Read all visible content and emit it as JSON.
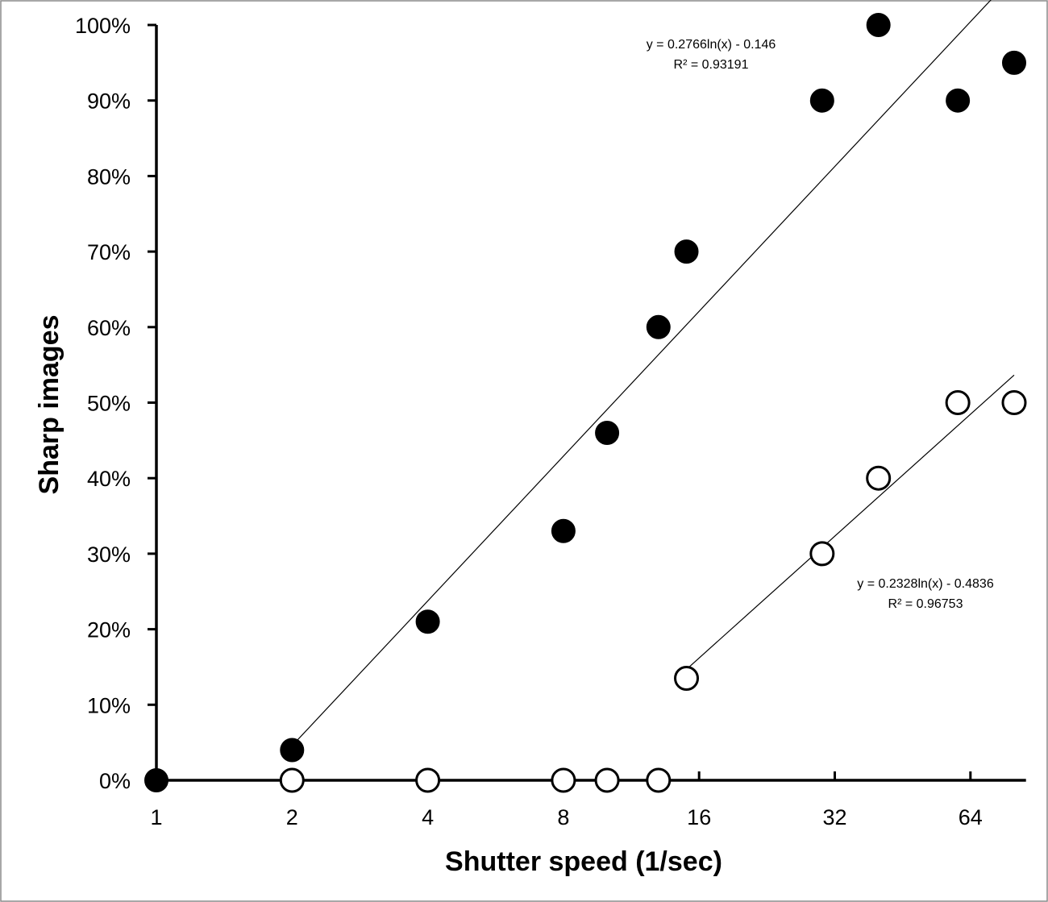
{
  "chart_data": {
    "type": "scatter",
    "title": "",
    "xlabel": "Shutter speed (1/sec)",
    "ylabel": "Sharp images",
    "x_scale": "log2",
    "xlim": [
      1,
      85
    ],
    "ylim": [
      0,
      1
    ],
    "x_ticks": [
      {
        "value": 1,
        "label": "1"
      },
      {
        "value": 2,
        "label": "2"
      },
      {
        "value": 4,
        "label": "4"
      },
      {
        "value": 8,
        "label": "8"
      },
      {
        "value": 16,
        "label": "16"
      },
      {
        "value": 32,
        "label": "32"
      },
      {
        "value": 64,
        "label": "64"
      }
    ],
    "y_ticks": [
      {
        "value": 0,
        "label": "0%"
      },
      {
        "value": 0.1,
        "label": "10%"
      },
      {
        "value": 0.2,
        "label": "20%"
      },
      {
        "value": 0.3,
        "label": "30%"
      },
      {
        "value": 0.4,
        "label": "40%"
      },
      {
        "value": 0.5,
        "label": "50%"
      },
      {
        "value": 0.6,
        "label": "60%"
      },
      {
        "value": 0.7,
        "label": "70%"
      },
      {
        "value": 0.8,
        "label": "80%"
      },
      {
        "value": 0.9,
        "label": "90%"
      },
      {
        "value": 1.0,
        "label": "100%"
      }
    ],
    "grid": false,
    "series": [
      {
        "name": "filled",
        "marker": "filled-circle",
        "points": [
          {
            "x": 1,
            "y": 0
          },
          {
            "x": 2,
            "y": 0.04
          },
          {
            "x": 4,
            "y": 0.21
          },
          {
            "x": 8,
            "y": 0.33
          },
          {
            "x": 10,
            "y": 0.46
          },
          {
            "x": 13,
            "y": 0.6
          },
          {
            "x": 15,
            "y": 0.7
          },
          {
            "x": 30,
            "y": 0.9
          },
          {
            "x": 40,
            "y": 1.0
          },
          {
            "x": 60,
            "y": 0.9
          },
          {
            "x": 80,
            "y": 0.95
          }
        ],
        "trendline": {
          "type": "logarithmic",
          "a": 0.2766,
          "b": -0.146,
          "x_from": 2,
          "x_to": 80,
          "equation": "y = 0.2766ln(x) - 0.146",
          "r2": "R² = 0.93191"
        }
      },
      {
        "name": "open",
        "marker": "open-circle",
        "points": [
          {
            "x": 2,
            "y": 0
          },
          {
            "x": 4,
            "y": 0
          },
          {
            "x": 8,
            "y": 0
          },
          {
            "x": 10,
            "y": 0
          },
          {
            "x": 13,
            "y": 0
          },
          {
            "x": 15,
            "y": 0.135
          },
          {
            "x": 30,
            "y": 0.3
          },
          {
            "x": 40,
            "y": 0.4
          },
          {
            "x": 60,
            "y": 0.5
          },
          {
            "x": 80,
            "y": 0.5
          }
        ],
        "trendline": {
          "type": "logarithmic",
          "a": 0.2328,
          "b": -0.4836,
          "x_from": 15,
          "x_to": 80,
          "equation": "y = 0.2328ln(x) - 0.4836",
          "r2": "R² = 0.96753"
        }
      }
    ]
  }
}
